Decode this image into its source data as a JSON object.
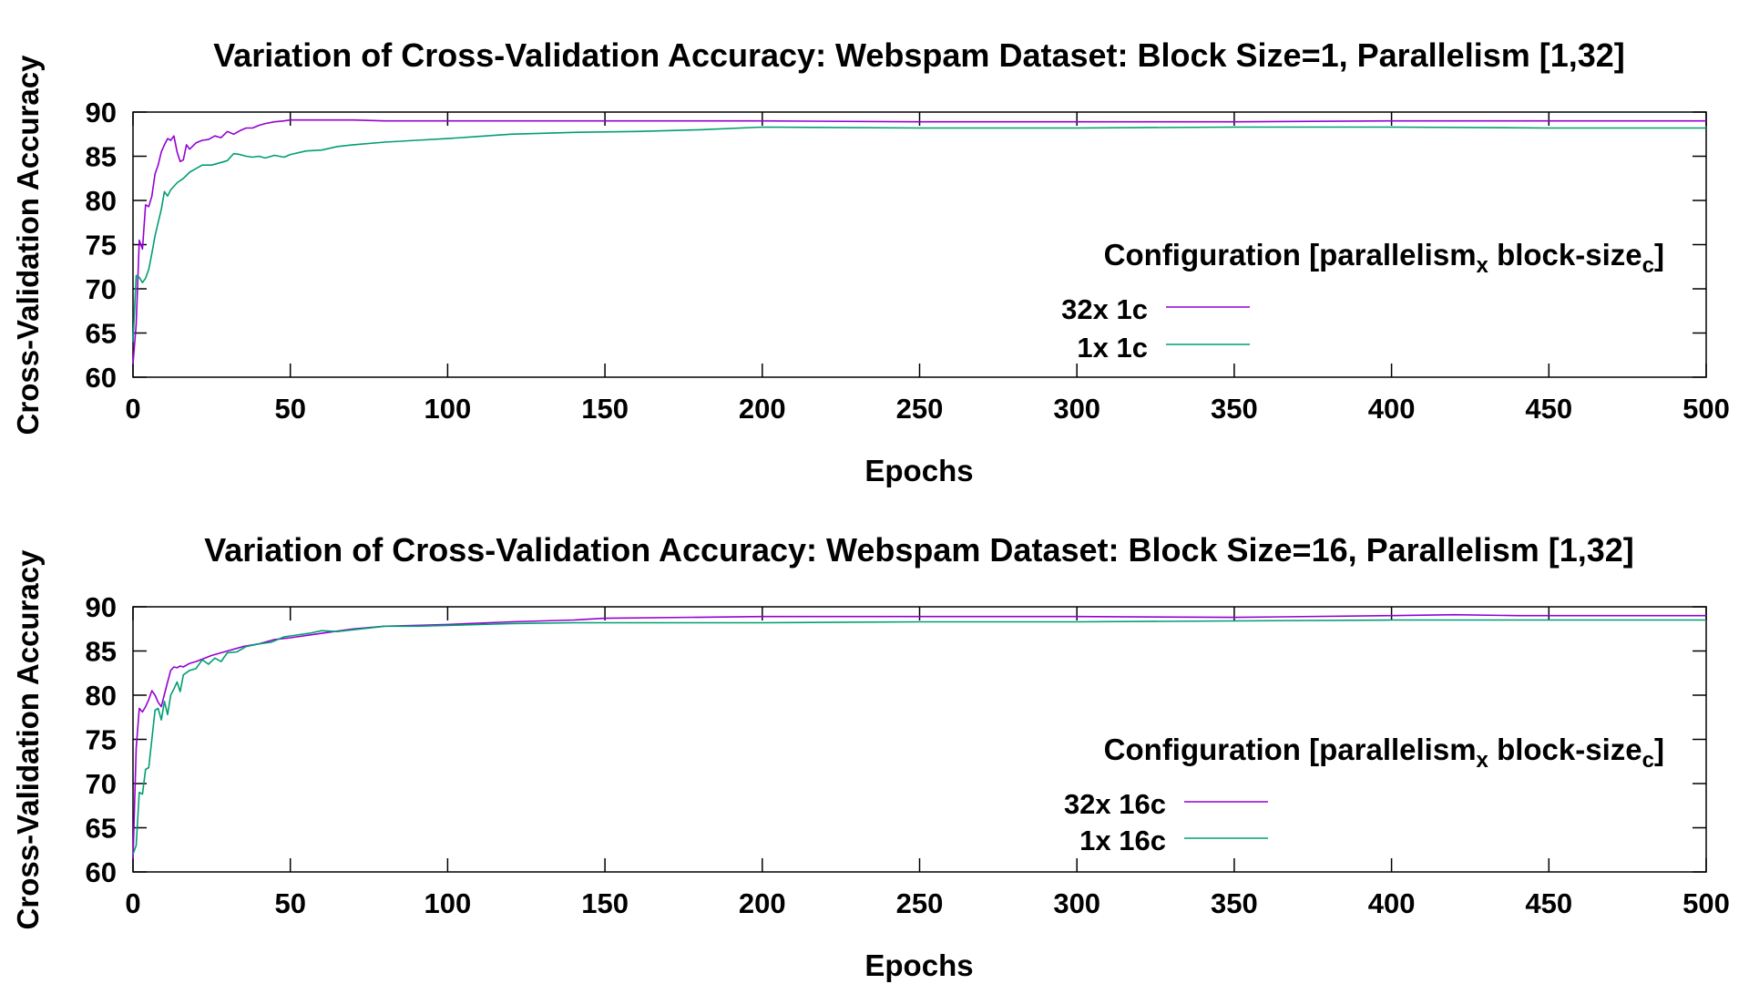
{
  "chart_data": [
    {
      "type": "line",
      "title": "Variation of Cross-Validation Accuracy: Webspam Dataset: Block Size=1, Parallelism [1,32]",
      "xlabel": "Epochs",
      "ylabel": "Cross-Validation Accuracy",
      "xlim": [
        0,
        500
      ],
      "ylim": [
        60,
        90
      ],
      "xticks": [
        0,
        50,
        100,
        150,
        200,
        250,
        300,
        350,
        400,
        450,
        500
      ],
      "yticks": [
        60,
        65,
        70,
        75,
        80,
        85,
        90
      ],
      "grid": false,
      "legend_position": "right",
      "legend": {
        "title_main": "Configuration [parallelism",
        "title_sub1": "x",
        "title_mid": " block-size",
        "title_sub2": "c",
        "title_end": "]"
      },
      "series": [
        {
          "name": "32x 1c",
          "color": "#9400d3",
          "x": [
            0,
            1,
            2,
            3,
            4,
            5,
            6,
            7,
            8,
            9,
            10,
            11,
            12,
            13,
            14,
            15,
            16,
            17,
            18,
            20,
            22,
            24,
            26,
            28,
            30,
            32,
            34,
            36,
            38,
            40,
            42,
            45,
            48,
            50,
            55,
            60,
            70,
            80,
            100,
            150,
            200,
            250,
            300,
            350,
            400,
            450,
            500
          ],
          "y": [
            61.5,
            66,
            75.5,
            74.5,
            79.5,
            79.3,
            80.5,
            83,
            84,
            85.5,
            86.3,
            87,
            86.8,
            87.3,
            85.5,
            84.4,
            84.6,
            86.3,
            85.8,
            86.5,
            86.8,
            86.9,
            87.3,
            87.1,
            87.8,
            87.5,
            87.9,
            88.2,
            88.2,
            88.5,
            88.7,
            88.9,
            89,
            89.1,
            89.1,
            89.1,
            89.1,
            89,
            89,
            89,
            89,
            88.9,
            88.9,
            88.9,
            89,
            89,
            89
          ]
        },
        {
          "name": "1x 1c",
          "color": "#009e73",
          "x": [
            0,
            1,
            2,
            3,
            4,
            5,
            6,
            7,
            8,
            9,
            10,
            11,
            12,
            14,
            16,
            18,
            20,
            22,
            25,
            28,
            30,
            32,
            34,
            36,
            38,
            40,
            42,
            45,
            48,
            50,
            55,
            60,
            65,
            70,
            80,
            90,
            100,
            120,
            140,
            160,
            180,
            200,
            250,
            300,
            350,
            400,
            450,
            500
          ],
          "y": [
            64,
            71.5,
            71.3,
            70.7,
            71.2,
            72.2,
            74,
            76,
            77.5,
            79,
            81,
            80.5,
            81.2,
            82,
            82.5,
            83.2,
            83.6,
            84,
            84,
            84.3,
            84.5,
            85.3,
            85.2,
            85,
            84.9,
            85,
            84.8,
            85.1,
            84.9,
            85.2,
            85.6,
            85.7,
            86.1,
            86.3,
            86.6,
            86.8,
            87,
            87.5,
            87.7,
            87.8,
            88,
            88.3,
            88.2,
            88.2,
            88.3,
            88.3,
            88.2,
            88.2
          ]
        }
      ]
    },
    {
      "type": "line",
      "title": "Variation of Cross-Validation Accuracy: Webspam Dataset: Block Size=16, Parallelism [1,32]",
      "xlabel": "Epochs",
      "ylabel": "Cross-Validation Accuracy",
      "xlim": [
        0,
        500
      ],
      "ylim": [
        60,
        90
      ],
      "xticks": [
        0,
        50,
        100,
        150,
        200,
        250,
        300,
        350,
        400,
        450,
        500
      ],
      "yticks": [
        60,
        65,
        70,
        75,
        80,
        85,
        90
      ],
      "grid": false,
      "legend_position": "right",
      "legend": {
        "title_main": "Configuration [parallelism",
        "title_sub1": "x",
        "title_mid": " block-size",
        "title_sub2": "c",
        "title_end": "]"
      },
      "series": [
        {
          "name": "32x 16c",
          "color": "#9400d3",
          "x": [
            0,
            1,
            2,
            3,
            4,
            5,
            6,
            7,
            8,
            9,
            10,
            11,
            12,
            13,
            14,
            15,
            16,
            18,
            20,
            25,
            30,
            35,
            40,
            45,
            50,
            60,
            70,
            80,
            90,
            100,
            120,
            140,
            150,
            200,
            250,
            300,
            350,
            400,
            420,
            440,
            460,
            480,
            500
          ],
          "y": [
            61.5,
            74,
            78.5,
            78.1,
            78.7,
            79.5,
            80.5,
            80,
            79.2,
            78.7,
            80.1,
            81.5,
            82.8,
            83.2,
            83.1,
            83.3,
            83.2,
            83.6,
            83.8,
            84.5,
            85,
            85.5,
            85.8,
            86.3,
            86.5,
            87,
            87.5,
            87.8,
            87.9,
            88,
            88.3,
            88.5,
            88.7,
            88.9,
            88.9,
            88.9,
            88.8,
            89,
            89.1,
            89,
            89,
            89,
            89
          ]
        },
        {
          "name": "1x 16c",
          "color": "#009e73",
          "x": [
            0,
            1,
            2,
            3,
            4,
            5,
            6,
            7,
            8,
            9,
            10,
            11,
            12,
            13,
            14,
            15,
            16,
            18,
            20,
            22,
            24,
            26,
            28,
            30,
            33,
            36,
            40,
            44,
            48,
            52,
            56,
            60,
            65,
            70,
            75,
            80,
            90,
            100,
            120,
            140,
            150,
            200,
            250,
            300,
            350,
            400,
            450,
            500
          ],
          "y": [
            62,
            63,
            69,
            68.8,
            71.6,
            71.8,
            75,
            78.3,
            78.5,
            77.2,
            79.3,
            77.8,
            80,
            80.7,
            81.5,
            80.4,
            82.3,
            82.8,
            83,
            84,
            83.5,
            84.2,
            83.8,
            84.8,
            84.9,
            85.5,
            85.8,
            86,
            86.6,
            86.8,
            87,
            87.3,
            87.2,
            87.4,
            87.6,
            87.8,
            87.8,
            87.9,
            88.1,
            88.2,
            88.2,
            88.2,
            88.3,
            88.3,
            88.4,
            88.5,
            88.5,
            88.5
          ]
        }
      ]
    }
  ]
}
